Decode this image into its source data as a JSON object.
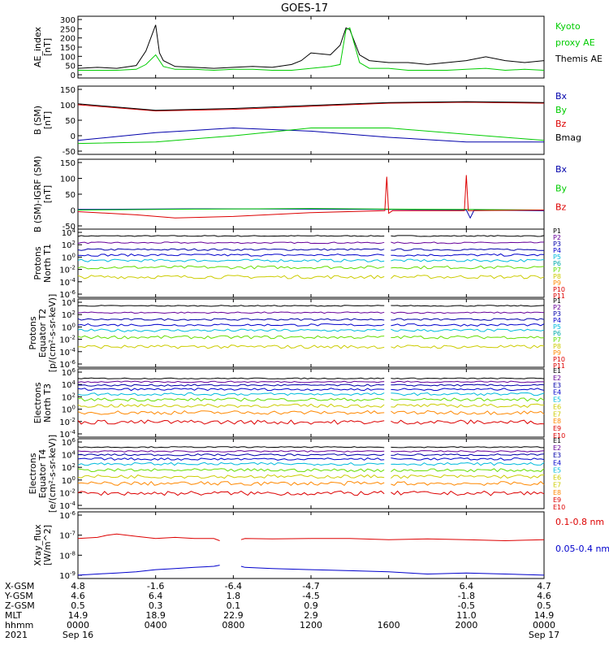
{
  "title": "GOES-17",
  "colors": {
    "black": "#000000",
    "red": "#dd0000",
    "green": "#00cc00",
    "blue": "#0000cc",
    "navy": "#0000aa",
    "purple": "#660099",
    "cyan": "#00bbdd",
    "teal": "#00aaaa",
    "yellow": "#cccc00",
    "orange": "#ff8800",
    "lime": "#66dd00"
  },
  "chart_data": [
    {
      "type": "line",
      "ylabel_lines": [
        "AE_index",
        "[nT]"
      ],
      "yticks": [
        "300",
        "250",
        "200",
        "150",
        "100",
        "50",
        "0"
      ],
      "ylim": [
        -10,
        310
      ],
      "legend": [
        {
          "label": "Kyoto",
          "color": "green"
        },
        {
          "label": "proxy AE",
          "color": "green"
        },
        {
          "label": "Themis AE",
          "color": "black"
        }
      ],
      "series": [
        {
          "name": "Themis AE",
          "color": "black",
          "x": [
            0,
            1,
            2,
            3,
            3.5,
            4,
            4.2,
            4.4,
            5,
            6,
            7,
            8,
            9,
            10,
            11,
            11.5,
            12,
            13,
            13.5,
            13.8,
            14,
            14.5,
            15,
            16,
            17,
            18,
            19,
            20,
            21,
            22,
            23,
            24
          ],
          "y": [
            40,
            45,
            40,
            55,
            130,
            265,
            120,
            80,
            50,
            45,
            40,
            45,
            50,
            45,
            60,
            80,
            120,
            110,
            160,
            250,
            240,
            110,
            80,
            70,
            70,
            60,
            70,
            80,
            100,
            80,
            70,
            80
          ]
        },
        {
          "name": "Kyoto proxy AE",
          "color": "green",
          "x": [
            0,
            1,
            2,
            3,
            3.5,
            4,
            4.2,
            4.4,
            5,
            6,
            7,
            8,
            9,
            10,
            11,
            12,
            13,
            13.5,
            13.8,
            14,
            14.5,
            15,
            16,
            17,
            18,
            19,
            20,
            21,
            22,
            23,
            24
          ],
          "y": [
            30,
            30,
            30,
            35,
            60,
            110,
            80,
            50,
            35,
            35,
            30,
            35,
            35,
            30,
            30,
            40,
            50,
            60,
            240,
            250,
            70,
            40,
            40,
            30,
            30,
            30,
            35,
            40,
            30,
            35,
            30
          ]
        }
      ]
    },
    {
      "type": "line",
      "ylabel_lines": [
        "B (SM)",
        "[nT]"
      ],
      "yticks": [
        "150",
        "100",
        "50",
        "0",
        "-50"
      ],
      "ylim": [
        -60,
        160
      ],
      "legend": [
        {
          "label": "Bx",
          "color": "navy"
        },
        {
          "label": "By",
          "color": "green"
        },
        {
          "label": "Bz",
          "color": "red"
        },
        {
          "label": "Bmag",
          "color": "black"
        }
      ],
      "series": [
        {
          "name": "Bx",
          "color": "navy",
          "x": [
            0,
            4,
            8,
            12,
            16,
            20,
            24
          ],
          "y": [
            -15,
            10,
            25,
            15,
            -5,
            -20,
            -20
          ]
        },
        {
          "name": "By",
          "color": "green",
          "x": [
            0,
            4,
            8,
            12,
            16,
            20,
            24
          ],
          "y": [
            -25,
            -20,
            0,
            25,
            25,
            5,
            -15
          ]
        },
        {
          "name": "Bz",
          "color": "red",
          "x": [
            0,
            4,
            8,
            12,
            16,
            20,
            24
          ],
          "y": [
            100,
            80,
            85,
            95,
            105,
            108,
            105
          ]
        },
        {
          "name": "Bmag",
          "color": "black",
          "x": [
            0,
            4,
            8,
            12,
            16,
            20,
            24
          ],
          "y": [
            103,
            82,
            88,
            98,
            107,
            110,
            107
          ]
        }
      ]
    },
    {
      "type": "line",
      "ylabel_lines": [
        "B (SM)-IGRF (SM)",
        "[nT]"
      ],
      "yticks": [
        "150",
        "100",
        "50",
        "0",
        "-50"
      ],
      "ylim": [
        -60,
        160
      ],
      "legend": [
        {
          "label": "Bx",
          "color": "navy"
        },
        {
          "label": "By",
          "color": "green"
        },
        {
          "label": "Bz",
          "color": "red"
        }
      ],
      "series": [
        {
          "name": "Bx",
          "color": "navy",
          "x": [
            0,
            6,
            12,
            15.9,
            16.1,
            20,
            20.2,
            20.4,
            24
          ],
          "y": [
            2,
            4,
            3,
            2,
            2,
            0,
            -25,
            0,
            -2
          ]
        },
        {
          "name": "By",
          "color": "green",
          "x": [
            0,
            6,
            12,
            16,
            20,
            24
          ],
          "y": [
            0,
            3,
            5,
            3,
            2,
            0
          ]
        },
        {
          "name": "Bz",
          "color": "red",
          "x": [
            0,
            3,
            5,
            8,
            12,
            15.8,
            15.9,
            16.0,
            16.2,
            19.9,
            20.0,
            20.1,
            24
          ],
          "y": [
            -5,
            -15,
            -25,
            -20,
            -8,
            -2,
            105,
            -10,
            -2,
            -2,
            110,
            -2,
            0
          ]
        }
      ]
    },
    {
      "type": "line",
      "log": true,
      "ylabel_lines": [
        "Protons",
        "North T1"
      ],
      "yticks": [
        "10^4",
        "10^2",
        "10^0",
        "10^-2",
        "10^-4",
        "10^-6"
      ],
      "ylim": [
        -6,
        4
      ],
      "legend": [
        {
          "label": "P1",
          "color": "black"
        },
        {
          "label": "P2",
          "color": "purple"
        },
        {
          "label": "P3",
          "color": "navy"
        },
        {
          "label": "P4",
          "color": "blue"
        },
        {
          "label": "P5",
          "color": "cyan"
        },
        {
          "label": "P6",
          "color": "teal"
        },
        {
          "label": "P7",
          "color": "lime"
        },
        {
          "label": "P8",
          "color": "yellow"
        },
        {
          "label": "P9",
          "color": "orange"
        },
        {
          "label": "P10",
          "color": "red"
        },
        {
          "label": "P11",
          "color": "red"
        }
      ],
      "series": [
        {
          "name": "P1",
          "color": "black",
          "levels": [
            3.0,
            3.0
          ]
        },
        {
          "name": "P2",
          "color": "purple",
          "levels": [
            2.0,
            2.0
          ]
        },
        {
          "name": "P3",
          "color": "navy",
          "levels": [
            1.0,
            1.0
          ]
        },
        {
          "name": "P4",
          "color": "blue",
          "levels": [
            0.2,
            0.2
          ]
        },
        {
          "name": "P5",
          "color": "cyan",
          "levels": [
            -0.6,
            -0.6
          ]
        },
        {
          "name": "P6",
          "color": "lime",
          "levels": [
            -1.6,
            -1.6
          ]
        },
        {
          "name": "P7",
          "color": "yellow",
          "levels": [
            -3.0,
            -3.0
          ]
        }
      ]
    },
    {
      "type": "line",
      "log": true,
      "ylabel_lines": [
        "Protons",
        "Equator T2",
        "[p/(cm²-s-sr-keV)]"
      ],
      "yticks": [
        "10^4",
        "10^2",
        "10^0",
        "10^-2",
        "10^-4",
        "10^-6"
      ],
      "ylim": [
        -6,
        4
      ],
      "legend": [
        {
          "label": "P1",
          "color": "black"
        },
        {
          "label": "P2",
          "color": "purple"
        },
        {
          "label": "P3",
          "color": "navy"
        },
        {
          "label": "P4",
          "color": "blue"
        },
        {
          "label": "P5",
          "color": "cyan"
        },
        {
          "label": "P6",
          "color": "teal"
        },
        {
          "label": "P7",
          "color": "lime"
        },
        {
          "label": "P8",
          "color": "yellow"
        },
        {
          "label": "P9",
          "color": "orange"
        },
        {
          "label": "P10",
          "color": "red"
        },
        {
          "label": "P11",
          "color": "red"
        }
      ],
      "series": [
        {
          "name": "P1",
          "color": "black",
          "levels": [
            3.0,
            3.0
          ]
        },
        {
          "name": "P2",
          "color": "purple",
          "levels": [
            2.0,
            2.0
          ]
        },
        {
          "name": "P3",
          "color": "navy",
          "levels": [
            1.0,
            1.0
          ]
        },
        {
          "name": "P4",
          "color": "blue",
          "levels": [
            0.2,
            0.2
          ]
        },
        {
          "name": "P5",
          "color": "cyan",
          "levels": [
            -0.6,
            -0.6
          ]
        },
        {
          "name": "P6",
          "color": "lime",
          "levels": [
            -1.6,
            -1.6
          ]
        },
        {
          "name": "P7",
          "color": "yellow",
          "levels": [
            -3.0,
            -3.0
          ]
        }
      ]
    },
    {
      "type": "line",
      "log": true,
      "ylabel_lines": [
        "Electrons",
        "North T3"
      ],
      "yticks": [
        "10^6",
        "10^4",
        "10^2",
        "10^0",
        "10^-2",
        "10^-4"
      ],
      "ylim": [
        -4,
        6
      ],
      "legend": [
        {
          "label": "E1",
          "color": "black"
        },
        {
          "label": "E2",
          "color": "purple"
        },
        {
          "label": "E3",
          "color": "navy"
        },
        {
          "label": "E4",
          "color": "blue"
        },
        {
          "label": "E5",
          "color": "cyan"
        },
        {
          "label": "E6",
          "color": "yellow"
        },
        {
          "label": "E7",
          "color": "yellow"
        },
        {
          "label": "E8",
          "color": "orange"
        },
        {
          "label": "E9",
          "color": "red"
        },
        {
          "label": "E10",
          "color": "red"
        }
      ],
      "series": [
        {
          "name": "E1",
          "color": "black",
          "levels": [
            4.6,
            4.6
          ]
        },
        {
          "name": "E2",
          "color": "purple",
          "levels": [
            4.1,
            4.1
          ]
        },
        {
          "name": "E3",
          "color": "navy",
          "levels": [
            3.6,
            3.6
          ]
        },
        {
          "name": "E4",
          "color": "blue",
          "levels": [
            3.0,
            3.0
          ]
        },
        {
          "name": "E5",
          "color": "cyan",
          "levels": [
            2.3,
            2.3
          ]
        },
        {
          "name": "E6",
          "color": "lime",
          "levels": [
            1.5,
            1.5
          ]
        },
        {
          "name": "E7",
          "color": "yellow",
          "levels": [
            0.6,
            0.6
          ]
        },
        {
          "name": "E8",
          "color": "orange",
          "levels": [
            -0.4,
            -0.4
          ]
        },
        {
          "name": "E9",
          "color": "red",
          "levels": [
            -1.8,
            -1.8
          ]
        }
      ]
    },
    {
      "type": "line",
      "log": true,
      "ylabel_lines": [
        "Electrons",
        "Equator T4",
        "[e/(cm²-s-sr-keV)]"
      ],
      "yticks": [
        "10^6",
        "10^4",
        "10^2",
        "10^0",
        "10^-2",
        "10^-4"
      ],
      "ylim": [
        -4,
        6
      ],
      "legend": [
        {
          "label": "E1",
          "color": "black"
        },
        {
          "label": "E2",
          "color": "purple"
        },
        {
          "label": "E3",
          "color": "navy"
        },
        {
          "label": "E4",
          "color": "blue"
        },
        {
          "label": "E5",
          "color": "cyan"
        },
        {
          "label": "E6",
          "color": "yellow"
        },
        {
          "label": "E7",
          "color": "yellow"
        },
        {
          "label": "E8",
          "color": "orange"
        },
        {
          "label": "E9",
          "color": "red"
        },
        {
          "label": "E10",
          "color": "red"
        }
      ],
      "series": [
        {
          "name": "E1",
          "color": "black",
          "levels": [
            4.8,
            4.8
          ]
        },
        {
          "name": "E2",
          "color": "purple",
          "levels": [
            4.2,
            4.2
          ]
        },
        {
          "name": "E3",
          "color": "navy",
          "levels": [
            3.7,
            3.7
          ]
        },
        {
          "name": "E4",
          "color": "blue",
          "levels": [
            3.1,
            3.1
          ]
        },
        {
          "name": "E5",
          "color": "cyan",
          "levels": [
            2.4,
            2.4
          ]
        },
        {
          "name": "E6",
          "color": "lime",
          "levels": [
            1.5,
            1.5
          ]
        },
        {
          "name": "E7",
          "color": "yellow",
          "levels": [
            0.6,
            0.6
          ]
        },
        {
          "name": "E8",
          "color": "orange",
          "levels": [
            -0.4,
            -0.4
          ]
        },
        {
          "name": "E9",
          "color": "red",
          "levels": [
            -1.8,
            -1.8
          ]
        }
      ]
    },
    {
      "type": "line",
      "log": true,
      "ylabel_lines": [
        "Xray_flux",
        "[W/m^2]"
      ],
      "yticks": [
        "10^-6",
        "10^-7",
        "10^-8",
        "10^-9"
      ],
      "ylim": [
        -9,
        -6
      ],
      "legend": [
        {
          "label": "0.1-0.8 nm",
          "color": "red"
        },
        {
          "label": "0.05-0.4 nm",
          "color": "blue"
        }
      ],
      "series": [
        {
          "name": "0.1-0.8 nm",
          "color": "red",
          "x": [
            0,
            1,
            1.5,
            2,
            3,
            4,
            5,
            6,
            7,
            7.3,
            null,
            8.4,
            8.6,
            10,
            12,
            14,
            16,
            18,
            20,
            22,
            24
          ],
          "y": [
            -7.2,
            -7.15,
            -7.05,
            -7.0,
            -7.1,
            -7.2,
            -7.15,
            -7.2,
            -7.2,
            -7.3,
            null,
            -7.25,
            -7.2,
            -7.22,
            -7.2,
            -7.2,
            -7.25,
            -7.22,
            -7.25,
            -7.3,
            -7.25
          ]
        },
        {
          "name": "0.05-0.4 nm",
          "color": "blue",
          "x": [
            0,
            1,
            2,
            3,
            4,
            5,
            6,
            7,
            7.3,
            null,
            8.4,
            8.6,
            10,
            12,
            14,
            16,
            18,
            20,
            22,
            24
          ],
          "y": [
            -8.85,
            -8.8,
            -8.75,
            -8.7,
            -8.6,
            -8.55,
            -8.5,
            -8.45,
            -8.4,
            null,
            -8.45,
            -8.5,
            -8.55,
            -8.6,
            -8.65,
            -8.7,
            -8.8,
            -8.75,
            -8.8,
            -8.85
          ]
        }
      ]
    }
  ],
  "footer": {
    "row_labels": [
      "X-GSM",
      "Y-GSM",
      "Z-GSM",
      "MLT",
      "hhmm",
      "2021"
    ],
    "columns": [
      {
        "x": 0,
        "values": [
          "4.8",
          "4.6",
          "0.5",
          "14.9",
          "0000",
          "Sep 16"
        ]
      },
      {
        "x": 4,
        "values": [
          "-1.6",
          "6.4",
          "0.3",
          "18.9",
          "0400",
          ""
        ]
      },
      {
        "x": 8,
        "values": [
          "-6.4",
          "1.8",
          "0.1",
          "22.9",
          "0800",
          ""
        ]
      },
      {
        "x": 12,
        "values": [
          "-4.7",
          "-4.5",
          "0.9",
          "2.9",
          "1200",
          ""
        ]
      },
      {
        "x": 16,
        "values": [
          "",
          "",
          "",
          "",
          "1600",
          ""
        ]
      },
      {
        "x": 20,
        "values": [
          "6.4",
          "-1.8",
          "-0.5",
          "11.0",
          "2000",
          ""
        ]
      },
      {
        "x": 24,
        "values": [
          "4.7",
          "4.6",
          "0.5",
          "14.9",
          "0000",
          "Sep 17"
        ]
      }
    ]
  }
}
